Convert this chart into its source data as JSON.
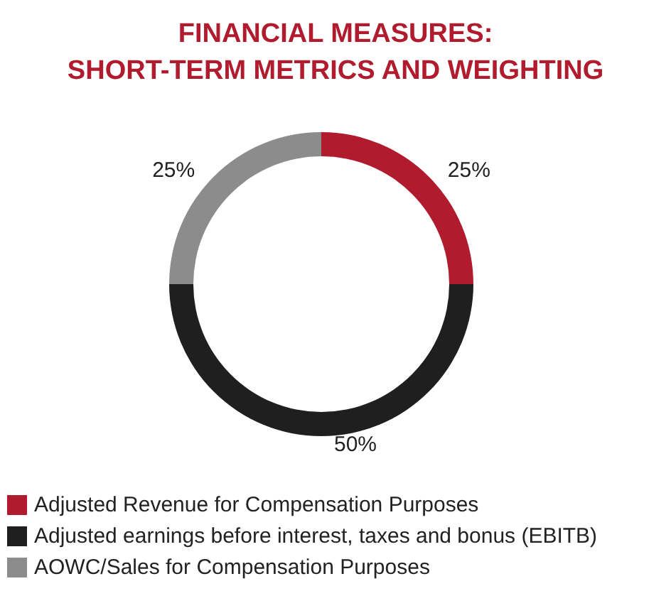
{
  "chart_data": {
    "type": "donut",
    "title": "FINANCIAL MEASURES:\nSHORT-TERM METRICS AND WEIGHTING",
    "categories": [
      "Adjusted Revenue for Compensation Purposes",
      "Adjusted earnings before interest, taxes and bonus (EBITB)",
      "AOWC/Sales for Compensation Purposes"
    ],
    "values": [
      25,
      50,
      25
    ],
    "colors": [
      "#b01c2e",
      "#1f1f1f",
      "#8c8c8c"
    ],
    "value_labels": [
      "25%",
      "50%",
      "25%"
    ],
    "legend": "bottom left"
  }
}
